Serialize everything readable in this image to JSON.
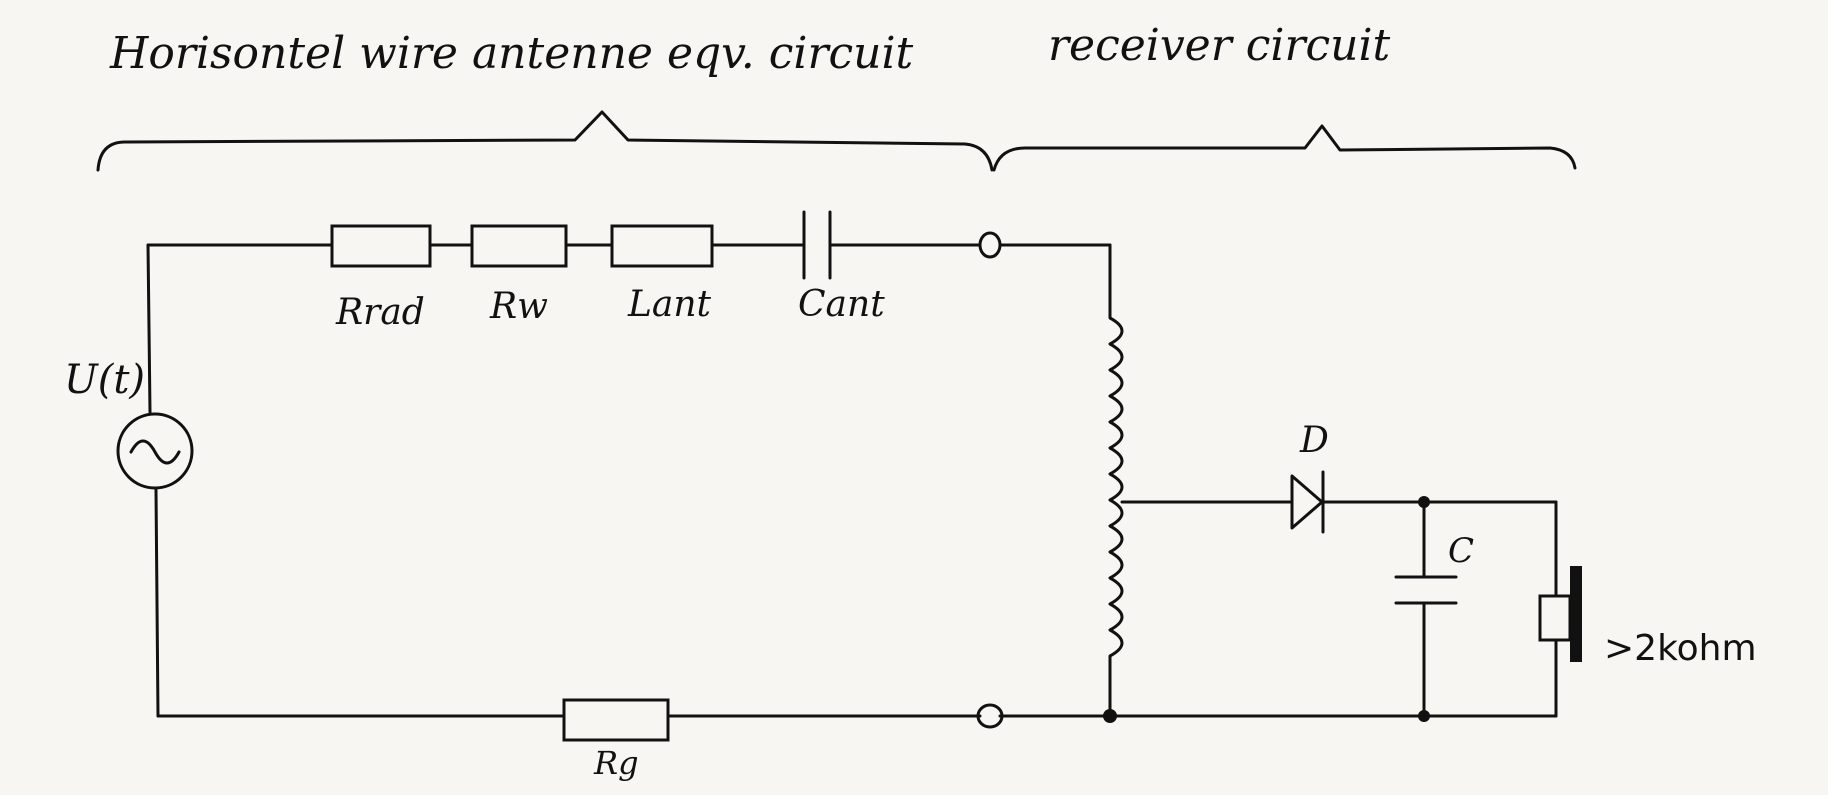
{
  "headings": {
    "antenna": "Horisontel wire antenne eqv. circuit",
    "receiver": "receiver circuit"
  },
  "labels": {
    "source": "U(t)",
    "rrad": "Rrad",
    "rw": "Rw",
    "lant": "Lant",
    "cant": "Cant",
    "rg": "Rg",
    "diode": "D",
    "capacitor": "C",
    "load": ">2kohm"
  },
  "colors": {
    "ink": "#111111",
    "paper": "#f7f6f3"
  }
}
